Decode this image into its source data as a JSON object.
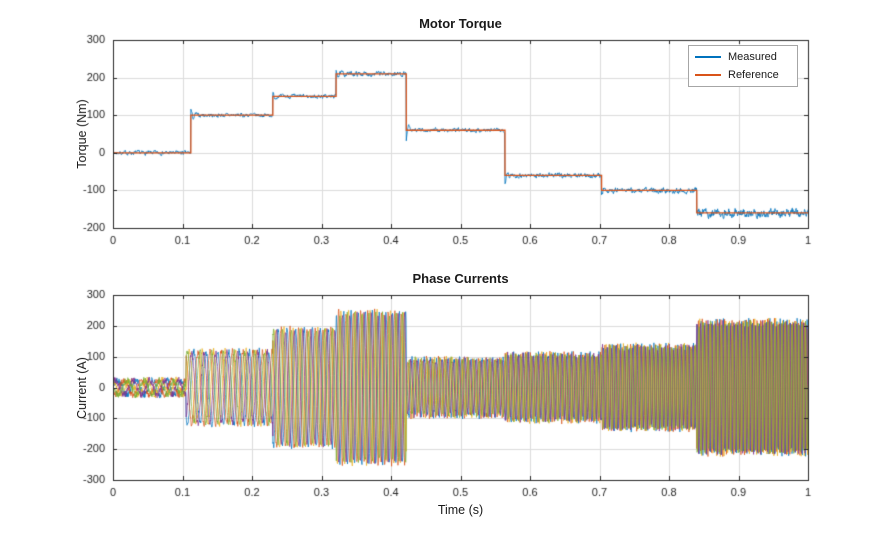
{
  "style": {
    "background": "#ffffff",
    "axis_color": "#262626",
    "grid_color": "#dcdcdc",
    "text_color": "#1a1a1a"
  },
  "chart_data": [
    {
      "type": "line",
      "title": "Motor Torque",
      "ylabel": "Torque (Nm)",
      "xlim": [
        0,
        1
      ],
      "ylim": [
        -200,
        300
      ],
      "xticks": [
        0,
        0.1,
        0.2,
        0.3,
        0.4,
        0.5,
        0.6,
        0.7,
        0.8,
        0.9,
        1
      ],
      "xtick_labels": [
        "0",
        "0.1",
        "0.2",
        "0.3",
        "0.4",
        "0.5",
        "0.6",
        "0.7",
        "0.8",
        "0.9",
        "1"
      ],
      "yticks": [
        -200,
        -100,
        0,
        100,
        200,
        300
      ],
      "ytick_labels": [
        "-200",
        "-100",
        "0",
        "100",
        "200",
        "300"
      ],
      "grid": true,
      "legend": {
        "position": "top-right"
      },
      "series": [
        {
          "name": "Measured",
          "color": "#0072BD",
          "style": "noisy_steps",
          "line_width": 0.8
        },
        {
          "name": "Reference",
          "color": "#D95319",
          "style": "steps",
          "line_width": 1.3
        }
      ],
      "steps": [
        {
          "t0": 0,
          "t1": 0.112,
          "value": 0,
          "noise": 6
        },
        {
          "t0": 0.112,
          "t1": 0.23,
          "value": 100,
          "noise": 6
        },
        {
          "t0": 0.23,
          "t1": 0.321,
          "value": 150,
          "noise": 6
        },
        {
          "t0": 0.321,
          "t1": 0.422,
          "value": 210,
          "noise": 7
        },
        {
          "t0": 0.422,
          "t1": 0.564,
          "value": 60,
          "noise": 6
        },
        {
          "t0": 0.564,
          "t1": 0.703,
          "value": -60,
          "noise": 7
        },
        {
          "t0": 0.703,
          "t1": 0.84,
          "value": -100,
          "noise": 8
        },
        {
          "t0": 0.84,
          "t1": 1,
          "value": -160,
          "noise": 13
        }
      ]
    },
    {
      "type": "line",
      "title": "Phase Currents",
      "xlabel": "Time (s)",
      "ylabel": "Current (A)",
      "xlim": [
        0,
        1
      ],
      "ylim": [
        -300,
        300
      ],
      "xticks": [
        0,
        0.1,
        0.2,
        0.3,
        0.4,
        0.5,
        0.6,
        0.7,
        0.8,
        0.9,
        1
      ],
      "xtick_labels": [
        "0",
        "0.1",
        "0.2",
        "0.3",
        "0.4",
        "0.5",
        "0.6",
        "0.7",
        "0.8",
        "0.9",
        "1"
      ],
      "yticks": [
        -300,
        -200,
        -100,
        0,
        100,
        200,
        300
      ],
      "ytick_labels": [
        "-300",
        "-200",
        "-100",
        "0",
        "100",
        "200",
        "300"
      ],
      "grid": true,
      "frequency": {
        "f0": 35,
        "f1": 210
      },
      "ripple": 11,
      "phase_series": [
        {
          "color": "#0072BD",
          "phase_deg": 0,
          "scale": 1
        },
        {
          "color": "#D95319",
          "phase_deg": 240,
          "scale": 1
        },
        {
          "color": "#EDB120",
          "phase_deg": 120,
          "scale": 1
        },
        {
          "color": "#7E2F8E",
          "phase_deg": 60,
          "scale": 0.97
        },
        {
          "color": "#77AC30",
          "phase_deg": 180,
          "scale": 0.97
        }
      ],
      "envelope": [
        {
          "t0": 0,
          "t1": 0.105,
          "amp": 24
        },
        {
          "t0": 0.105,
          "t1": 0.23,
          "amp": 118
        },
        {
          "t0": 0.23,
          "t1": 0.321,
          "amp": 190
        },
        {
          "t0": 0.321,
          "t1": 0.422,
          "amp": 245
        },
        {
          "t0": 0.422,
          "t1": 0.564,
          "amp": 92
        },
        {
          "t0": 0.564,
          "t1": 0.703,
          "amp": 108
        },
        {
          "t0": 0.703,
          "t1": 0.84,
          "amp": 135
        },
        {
          "t0": 0.84,
          "t1": 1,
          "amp": 215
        }
      ]
    }
  ]
}
